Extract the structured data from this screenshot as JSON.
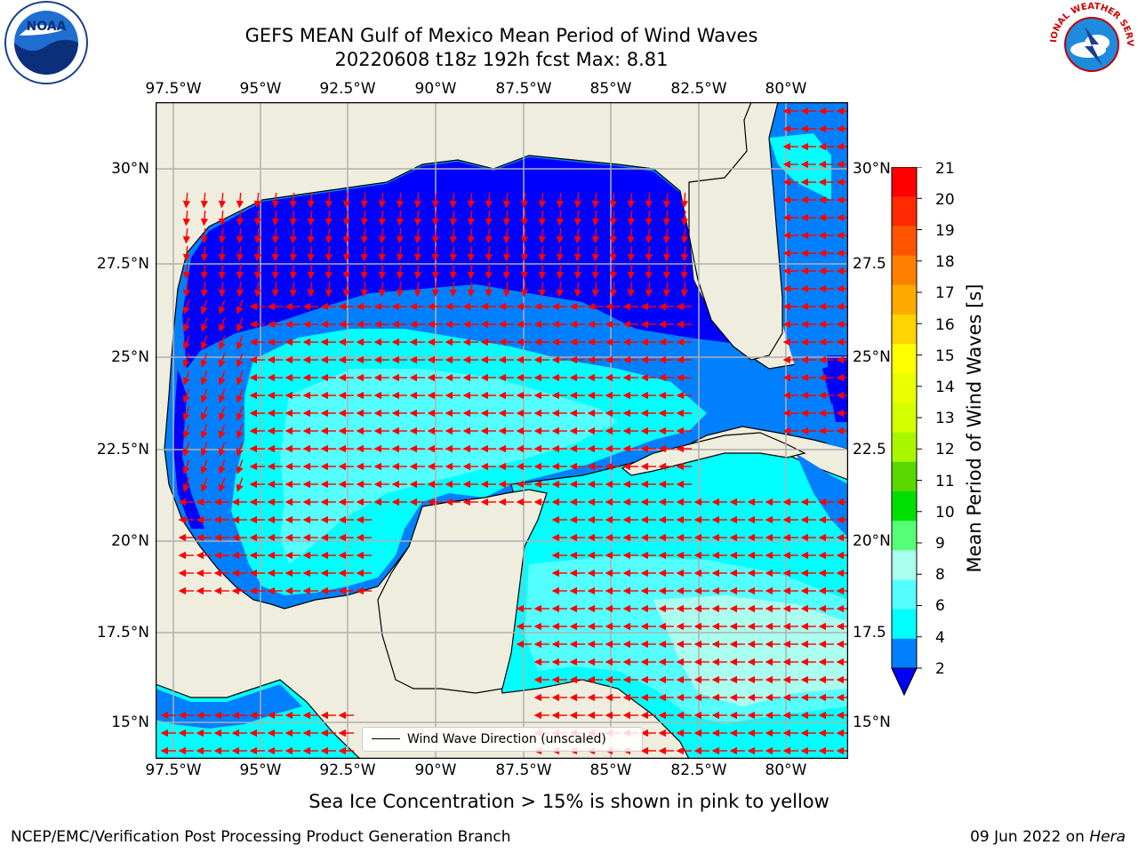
{
  "title": {
    "line1": "GEFS MEAN Gulf of Mexico Mean Period of Wind Waves",
    "line2": "20220608 t18z 192h fcst   Max: 8.81"
  },
  "map": {
    "lon_labels": [
      "97.5°W",
      "95°W",
      "92.5°W",
      "90°W",
      "87.5°W",
      "85°W",
      "82.5°W",
      "80°W"
    ],
    "lat_labels_left": [
      "30°N",
      "27.5°N",
      "25°N",
      "22.5°N",
      "20°N",
      "17.5°N",
      "15°N"
    ],
    "lat_labels_right": [
      "30°N",
      "27.5",
      "25°N",
      "22.5",
      "20°N",
      "17.5",
      "15°N"
    ],
    "land_color": "#efedde",
    "gridline_color": "#b0b0b0",
    "arrow_color": "#ff0000"
  },
  "legend": {
    "label": "Wind Wave Direction (unscaled)"
  },
  "colorbar": {
    "ticks": [
      "21",
      "20",
      "19",
      "18",
      "17",
      "16",
      "15",
      "14",
      "13",
      "12",
      "11",
      "10",
      "9",
      "8",
      "6",
      "4",
      "2"
    ],
    "label": "Mean Period of Wind Waves [s]",
    "colors": [
      "#ff0000",
      "#ff2a00",
      "#ff5500",
      "#ff8000",
      "#ffaa00",
      "#ffd400",
      "#ffff00",
      "#eaff00",
      "#d4ff00",
      "#aaf500",
      "#5ad800",
      "#00e000",
      "#55ff77",
      "#aaffee",
      "#55ffff",
      "#00ffff",
      "#0080ff",
      "#0000ff"
    ]
  },
  "subtitle": "Sea Ice Concentration > 15% is shown in pink to yellow",
  "footer": {
    "left": "NCEP/EMC/Verification Post Processing Product Generation Branch",
    "right_date": "09 Jun 2022 on ",
    "right_host": "Hera"
  },
  "logos": {
    "noaa_text": "NOAA",
    "nws_text": "NATIONAL WEATHER SERVICE"
  }
}
